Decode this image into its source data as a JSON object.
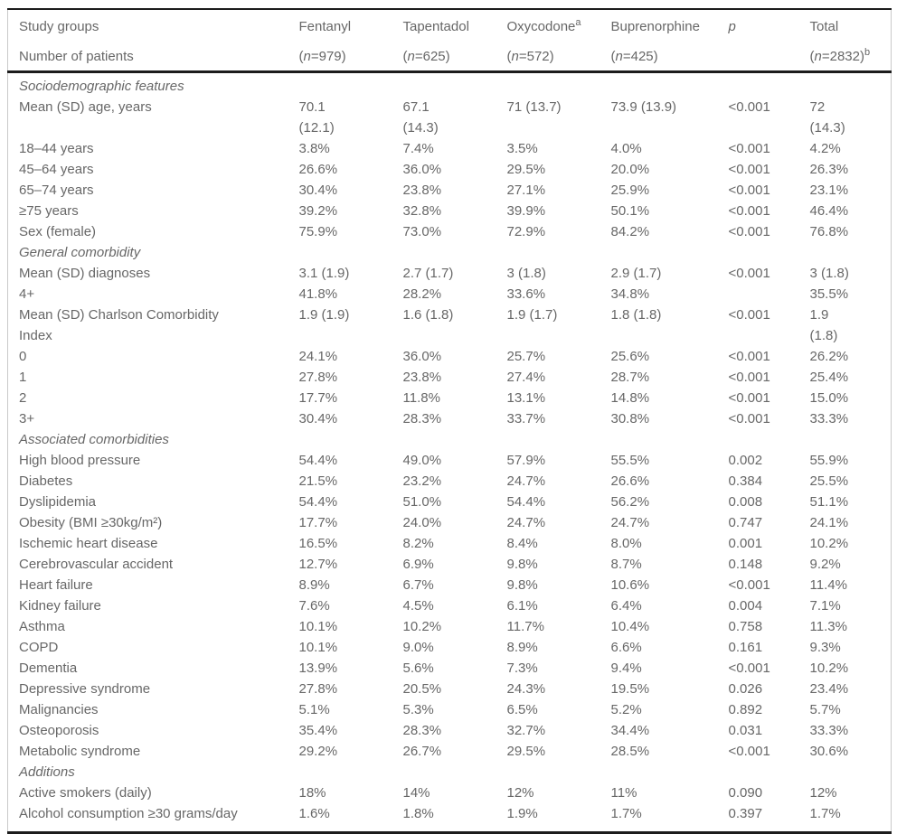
{
  "colors": {
    "text": "#676767",
    "rule_dark": "#1c1c1c",
    "rule_light": "#c9c9c9",
    "background": "#ffffff"
  },
  "table": {
    "header": {
      "study_groups": "Study groups",
      "number_of_patients": "Number of patients",
      "columns": [
        {
          "name": "Fentanyl",
          "name_sup": "",
          "n_label": "(n=979)",
          "n_sup": ""
        },
        {
          "name": "Tapentadol",
          "name_sup": "",
          "n_label": "(n=625)",
          "n_sup": ""
        },
        {
          "name": "Oxycodone",
          "name_sup": "a",
          "n_label": "(n=572)",
          "n_sup": ""
        },
        {
          "name": "Buprenorphine",
          "name_sup": "",
          "n_label": "(n=425)",
          "n_sup": ""
        },
        {
          "name": "p",
          "name_sup": "",
          "n_label": "",
          "n_sup": ""
        },
        {
          "name": "Total",
          "name_sup": "",
          "n_label": "(n=2832)",
          "n_sup": "b"
        }
      ]
    },
    "sections": [
      {
        "title": "Sociodemographic features",
        "rows": [
          {
            "label": "Mean (SD) age, years",
            "values": [
              "70.1\n(12.1)",
              "67.1\n(14.3)",
              "71 (13.7)",
              "73.9 (13.9)",
              "<0.001",
              "72\n(14.3)"
            ]
          },
          {
            "label": "18–44 years",
            "values": [
              "3.8%",
              "7.4%",
              "3.5%",
              "4.0%",
              "<0.001",
              "4.2%"
            ]
          },
          {
            "label": "45–64 years",
            "values": [
              "26.6%",
              "36.0%",
              "29.5%",
              "20.0%",
              "<0.001",
              "26.3%"
            ]
          },
          {
            "label": "65–74 years",
            "values": [
              "30.4%",
              "23.8%",
              "27.1%",
              "25.9%",
              "<0.001",
              "23.1%"
            ]
          },
          {
            "label": "≥75 years",
            "values": [
              "39.2%",
              "32.8%",
              "39.9%",
              "50.1%",
              "<0.001",
              "46.4%"
            ]
          },
          {
            "label": "Sex (female)",
            "values": [
              "75.9%",
              "73.0%",
              "72.9%",
              "84.2%",
              "<0.001",
              "76.8%"
            ]
          }
        ]
      },
      {
        "title": "General comorbidity",
        "rows": [
          {
            "label": "Mean (SD) diagnoses",
            "values": [
              "3.1 (1.9)",
              "2.7 (1.7)",
              "3 (1.8)",
              "2.9 (1.7)",
              "<0.001",
              "3 (1.8)"
            ]
          },
          {
            "label": "4+",
            "values": [
              "41.8%",
              "28.2%",
              "33.6%",
              "34.8%",
              "",
              "35.5%"
            ]
          },
          {
            "label": "Mean (SD) Charlson Comorbidity\nIndex",
            "values": [
              "1.9 (1.9)",
              "1.6 (1.8)",
              "1.9 (1.7)",
              "1.8 (1.8)",
              "<0.001",
              "1.9\n(1.8)"
            ]
          },
          {
            "label": "0",
            "values": [
              "24.1%",
              "36.0%",
              "25.7%",
              "25.6%",
              "<0.001",
              "26.2%"
            ]
          },
          {
            "label": "1",
            "values": [
              "27.8%",
              "23.8%",
              "27.4%",
              "28.7%",
              "<0.001",
              "25.4%"
            ]
          },
          {
            "label": "2",
            "values": [
              "17.7%",
              "11.8%",
              "13.1%",
              "14.8%",
              "<0.001",
              "15.0%"
            ]
          },
          {
            "label": "3+",
            "values": [
              "30.4%",
              "28.3%",
              "33.7%",
              "30.8%",
              "<0.001",
              "33.3%"
            ]
          }
        ]
      },
      {
        "title": "Associated comorbidities",
        "rows": [
          {
            "label": "High blood pressure",
            "values": [
              "54.4%",
              "49.0%",
              "57.9%",
              "55.5%",
              "0.002",
              "55.9%"
            ]
          },
          {
            "label": "Diabetes",
            "values": [
              "21.5%",
              "23.2%",
              "24.7%",
              "26.6%",
              "0.384",
              "25.5%"
            ]
          },
          {
            "label": "Dyslipidemia",
            "values": [
              "54.4%",
              "51.0%",
              "54.4%",
              "56.2%",
              "0.008",
              "51.1%"
            ]
          },
          {
            "label": "Obesity (BMI ≥30kg/m²)",
            "values": [
              "17.7%",
              "24.0%",
              "24.7%",
              "24.7%",
              "0.747",
              "24.1%"
            ]
          },
          {
            "label": "Ischemic heart disease",
            "values": [
              "16.5%",
              "8.2%",
              "8.4%",
              "8.0%",
              "0.001",
              "10.2%"
            ]
          },
          {
            "label": "Cerebrovascular accident",
            "values": [
              "12.7%",
              "6.9%",
              "9.8%",
              "8.7%",
              "0.148",
              "9.2%"
            ]
          },
          {
            "label": "Heart failure",
            "values": [
              "8.9%",
              "6.7%",
              "9.8%",
              "10.6%",
              "<0.001",
              "11.4%"
            ]
          },
          {
            "label": "Kidney failure",
            "values": [
              "7.6%",
              "4.5%",
              "6.1%",
              "6.4%",
              "0.004",
              "7.1%"
            ]
          },
          {
            "label": "Asthma",
            "values": [
              "10.1%",
              "10.2%",
              "11.7%",
              "10.4%",
              "0.758",
              "11.3%"
            ]
          },
          {
            "label": "COPD",
            "values": [
              "10.1%",
              "9.0%",
              "8.9%",
              "6.6%",
              "0.161",
              "9.3%"
            ]
          },
          {
            "label": "Dementia",
            "values": [
              "13.9%",
              "5.6%",
              "7.3%",
              "9.4%",
              "<0.001",
              "10.2%"
            ]
          },
          {
            "label": "Depressive syndrome",
            "values": [
              "27.8%",
              "20.5%",
              "24.3%",
              "19.5%",
              "0.026",
              "23.4%"
            ]
          },
          {
            "label": "Malignancies",
            "values": [
              "5.1%",
              "5.3%",
              "6.5%",
              "5.2%",
              "0.892",
              "5.7%"
            ]
          },
          {
            "label": "Osteoporosis",
            "values": [
              "35.4%",
              "28.3%",
              "32.7%",
              "34.4%",
              "0.031",
              "33.3%"
            ]
          },
          {
            "label": "Metabolic syndrome",
            "values": [
              "29.2%",
              "26.7%",
              "29.5%",
              "28.5%",
              "<0.001",
              "30.6%"
            ]
          }
        ]
      },
      {
        "title": "Additions",
        "rows": [
          {
            "label": "Active smokers (daily)",
            "values": [
              "18%",
              "14%",
              "12%",
              "11%",
              "0.090",
              "12%"
            ]
          },
          {
            "label": "Alcohol consumption ≥30 grams/day",
            "values": [
              "1.6%",
              "1.8%",
              "1.9%",
              "1.7%",
              "0.397",
              "1.7%"
            ]
          }
        ]
      }
    ]
  }
}
